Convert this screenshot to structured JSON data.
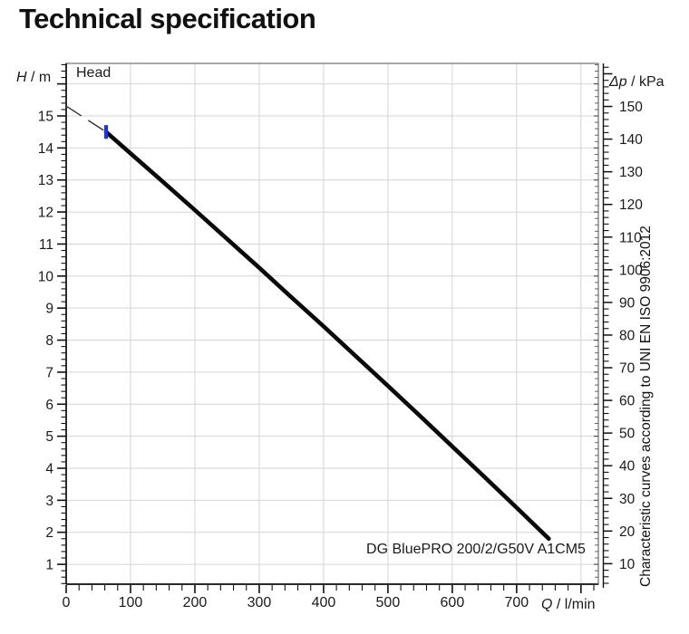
{
  "title": "Technical specification",
  "chart_data": {
    "type": "line",
    "inner_label": "Head",
    "x_axis": {
      "symbol": "Q",
      "unit": "/ l/min",
      "min": 0,
      "max": 827,
      "major_step": 100,
      "minor_step": 20,
      "label_ticks": [
        0,
        100,
        200,
        300,
        400,
        500,
        600,
        700
      ]
    },
    "y_axis_left": {
      "symbol": "H",
      "unit": "/ m",
      "min": 0.38,
      "max": 16.64,
      "major_step": 1,
      "minor_step": 0.2,
      "label_ticks": [
        1,
        2,
        3,
        4,
        5,
        6,
        7,
        8,
        9,
        10,
        11,
        12,
        13,
        14,
        15
      ]
    },
    "y_axis_right": {
      "symbol": "Δp",
      "unit": "/ kPa",
      "min": 3.7,
      "max": 163.2,
      "major_step": 10,
      "minor_step": 2,
      "conversion_factor_kpa_per_m": 9.80665,
      "label_ticks": [
        10,
        20,
        30,
        40,
        50,
        60,
        70,
        80,
        90,
        100,
        110,
        120,
        130,
        140,
        150
      ]
    },
    "series": [
      {
        "name": "DG BluePRO 200/2/G50V A1CM5",
        "color": "#0a0a0a",
        "points": [
          [
            62,
            14.5
          ],
          [
            100,
            13.83
          ],
          [
            150,
            12.95
          ],
          [
            200,
            12.06
          ],
          [
            250,
            11.16
          ],
          [
            300,
            10.26
          ],
          [
            350,
            9.34
          ],
          [
            400,
            8.43
          ],
          [
            450,
            7.5
          ],
          [
            500,
            6.57
          ],
          [
            550,
            5.63
          ],
          [
            600,
            4.68
          ],
          [
            650,
            3.73
          ],
          [
            700,
            2.77
          ],
          [
            750,
            1.8
          ]
        ]
      }
    ],
    "dashed_extension": {
      "color": "#333333",
      "points": [
        [
          0,
          15.31
        ],
        [
          62,
          14.5
        ]
      ]
    },
    "duty_marker": {
      "q": 62,
      "h": 14.5,
      "color": "#2433cf"
    },
    "grid": {
      "visible": true,
      "color": "#d4d4d4"
    },
    "caption_right": "Characteristic curves according to UNI EN ISO 9906:2012"
  }
}
